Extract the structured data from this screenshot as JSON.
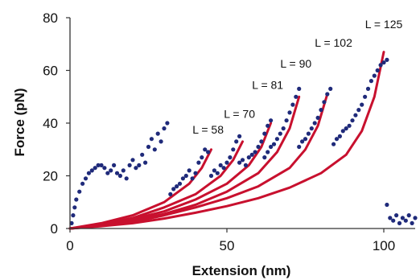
{
  "chart_data": {
    "type": "scatter",
    "title": "",
    "xlabel": "Extension (nm)",
    "ylabel": "Force (pN)",
    "xlim": [
      0,
      110
    ],
    "ylim": [
      0,
      80
    ],
    "xticks": [
      0,
      50,
      100
    ],
    "yticks": [
      0,
      20,
      40,
      60,
      80
    ],
    "grid": false,
    "legend": "none",
    "colors": {
      "data": "#1f2a7a",
      "fit": "#c8102e",
      "axis": "#333333"
    },
    "annotations": [
      {
        "text": "L = 58",
        "x": 44,
        "y": 36
      },
      {
        "text": "L = 70",
        "x": 54,
        "y": 42
      },
      {
        "text": "L = 81",
        "x": 63,
        "y": 53
      },
      {
        "text": "L = 90",
        "x": 72,
        "y": 61
      },
      {
        "text": "L = 102",
        "x": 84,
        "y": 69
      },
      {
        "text": "L = 125",
        "x": 100,
        "y": 76
      }
    ],
    "fits": [
      {
        "L": 58,
        "x": [
          0,
          10,
          20,
          30,
          38,
          42,
          45
        ],
        "y": [
          0,
          2,
          5,
          10,
          17,
          23,
          30
        ]
      },
      {
        "L": 70,
        "x": [
          0,
          10,
          20,
          30,
          40,
          48,
          52,
          55
        ],
        "y": [
          0,
          1.5,
          4,
          8,
          13,
          20,
          26,
          33
        ]
      },
      {
        "L": 81,
        "x": [
          0,
          10,
          20,
          30,
          40,
          50,
          57,
          61,
          64
        ],
        "y": [
          0,
          1.3,
          3.5,
          6.5,
          11,
          17,
          24,
          31,
          40
        ]
      },
      {
        "L": 90,
        "x": [
          0,
          10,
          20,
          30,
          40,
          50,
          60,
          66,
          70,
          73
        ],
        "y": [
          0,
          1.2,
          3,
          5.5,
          9,
          14,
          21,
          29,
          38,
          50
        ]
      },
      {
        "L": 102,
        "x": [
          0,
          10,
          20,
          30,
          40,
          50,
          60,
          70,
          75,
          79,
          82
        ],
        "y": [
          0,
          1,
          2.5,
          5,
          8,
          11.5,
          16,
          23,
          30,
          39,
          51
        ]
      },
      {
        "L": 125,
        "x": [
          0,
          10,
          20,
          30,
          40,
          50,
          60,
          70,
          80,
          88,
          93,
          97,
          100
        ],
        "y": [
          0,
          0.9,
          2,
          3.8,
          6,
          8.5,
          11.5,
          15.5,
          21,
          28,
          37,
          50,
          67
        ]
      }
    ],
    "series": [
      {
        "x": [
          0.5,
          1,
          1.5,
          2,
          3,
          4,
          5,
          6,
          7,
          8,
          9,
          10,
          11,
          12,
          13,
          14,
          15,
          16,
          17,
          18,
          19,
          20,
          21,
          22,
          23,
          24,
          25,
          26,
          27,
          28,
          29,
          30,
          31
        ],
        "y": [
          2,
          5,
          8,
          11,
          14,
          17,
          19,
          21,
          22,
          23,
          24,
          24,
          23,
          21,
          22,
          24,
          21,
          20,
          22,
          19,
          24,
          26,
          23,
          24,
          28,
          25,
          31,
          34,
          30,
          36,
          33,
          38,
          40
        ]
      },
      {
        "x": [
          32,
          33,
          34,
          35,
          36,
          37,
          38,
          39,
          40,
          41,
          42,
          43,
          44
        ],
        "y": [
          13,
          15,
          16,
          17,
          19,
          20,
          22,
          19,
          21,
          25,
          27,
          30,
          29
        ]
      },
      {
        "x": [
          45,
          46,
          47,
          48,
          49,
          50,
          51,
          52,
          53,
          54
        ],
        "y": [
          20,
          22,
          21,
          24,
          23,
          25,
          27,
          30,
          33,
          35
        ]
      },
      {
        "x": [
          54,
          55,
          56,
          57,
          58,
          59,
          60,
          61,
          62,
          63,
          64
        ],
        "y": [
          25,
          26,
          24,
          27,
          28,
          29,
          31,
          33,
          36,
          39,
          41
        ]
      },
      {
        "x": [
          62,
          63,
          64,
          65,
          66,
          67,
          68,
          69,
          70,
          71,
          72,
          73
        ],
        "y": [
          27,
          29,
          31,
          32,
          34,
          36,
          38,
          41,
          44,
          47,
          50,
          53
        ]
      },
      {
        "x": [
          73,
          74,
          75,
          76,
          77,
          78,
          79,
          80,
          81,
          82,
          83
        ],
        "y": [
          31,
          33,
          34,
          36,
          38,
          40,
          42,
          45,
          48,
          51,
          53
        ]
      },
      {
        "x": [
          84,
          85,
          86,
          87,
          88,
          89,
          90,
          91,
          92,
          93,
          94,
          95,
          96,
          97,
          98,
          99,
          100,
          101
        ],
        "y": [
          32,
          34,
          35,
          37,
          38,
          39,
          41,
          43,
          45,
          47,
          50,
          53,
          56,
          58,
          60,
          62,
          63,
          64
        ]
      },
      {
        "x": [
          101,
          102,
          103,
          104,
          105,
          106,
          107,
          108,
          109,
          110
        ],
        "y": [
          9,
          4,
          3,
          5,
          2,
          4,
          3,
          5,
          2,
          4
        ]
      }
    ]
  }
}
